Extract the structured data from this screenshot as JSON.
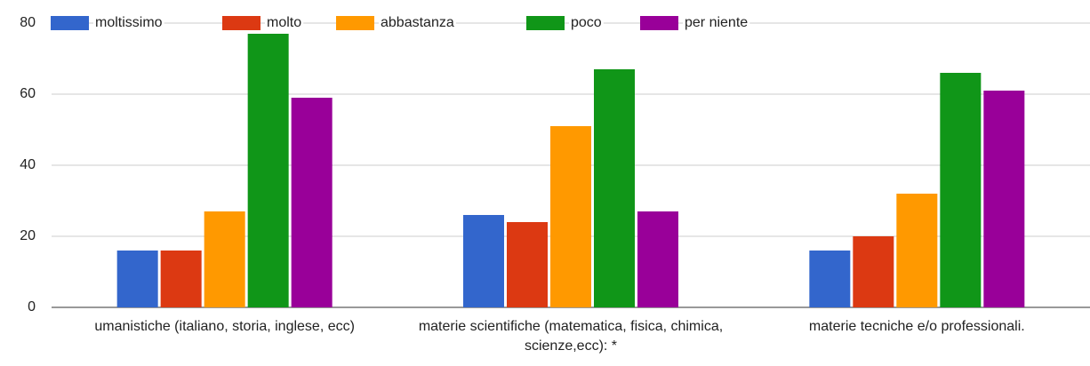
{
  "chart_data": {
    "type": "bar",
    "categories": [
      "umanistiche (italiano, storia, inglese, ecc)",
      "materie scientifiche (matematica, fisica, chimica, scienze,ecc): *",
      "materie tecniche e/o professionali."
    ],
    "series": [
      {
        "name": "moltissimo",
        "color": "#3366cc",
        "values": [
          16,
          26,
          16
        ]
      },
      {
        "name": "molto",
        "color": "#dc3912",
        "values": [
          16,
          24,
          20
        ]
      },
      {
        "name": "abbastanza",
        "color": "#ff9900",
        "values": [
          27,
          51,
          32
        ]
      },
      {
        "name": "poco",
        "color": "#109618",
        "values": [
          77,
          67,
          66
        ]
      },
      {
        "name": "per niente",
        "color": "#990099",
        "values": [
          59,
          27,
          61
        ]
      }
    ],
    "ylim": [
      0,
      80
    ],
    "yticks": [
      0,
      20,
      40,
      60,
      80
    ],
    "grid": true,
    "legend": "top"
  }
}
